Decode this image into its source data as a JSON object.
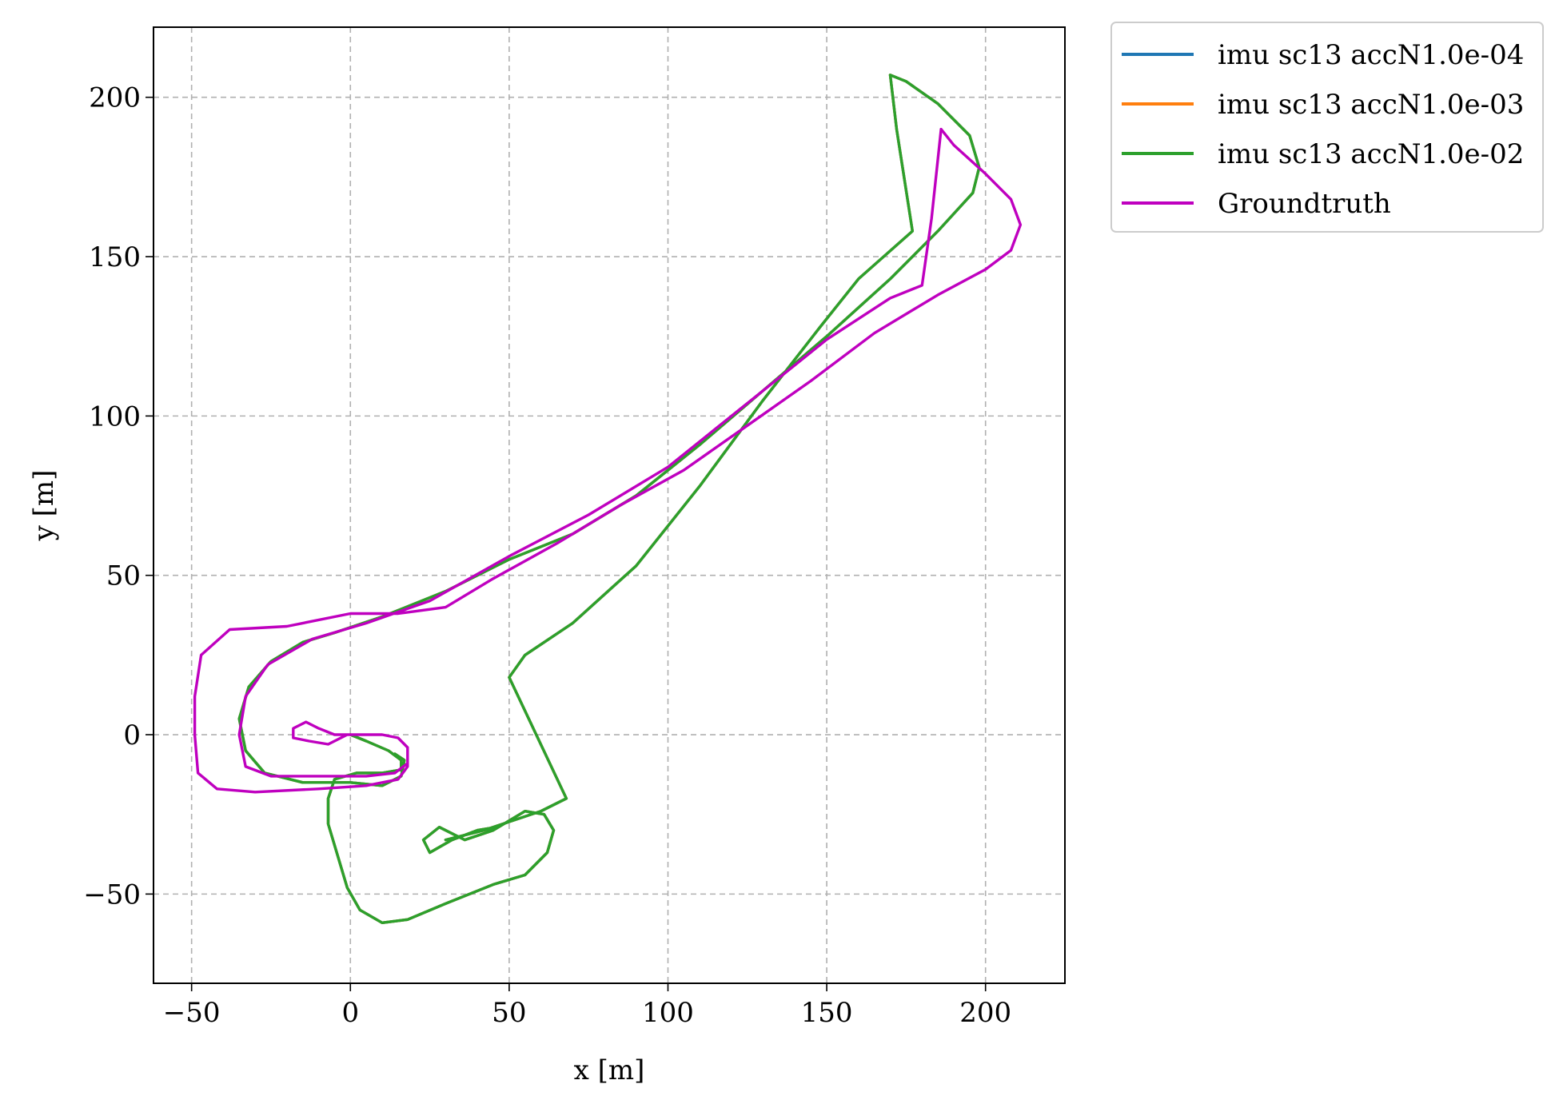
{
  "chart_data": {
    "type": "line",
    "title": "",
    "xlabel": "x [m]",
    "ylabel": "y [m]",
    "xlim": [
      -62,
      225
    ],
    "ylim": [
      -78,
      222
    ],
    "xticks": [
      -50,
      0,
      50,
      100,
      150,
      200
    ],
    "yticks": [
      -50,
      0,
      50,
      100,
      150,
      200
    ],
    "xtick_labels": [
      "−50",
      "0",
      "50",
      "100",
      "150",
      "200"
    ],
    "ytick_labels": [
      "−50",
      "0",
      "50",
      "100",
      "150",
      "200"
    ],
    "grid": true,
    "legend_position": "outside-top-right",
    "series": [
      {
        "name": "imu sc13 accN1.0e-04",
        "color": "#1f77b4",
        "points": [
          [
            0,
            0
          ],
          [
            5,
            -2
          ],
          [
            12,
            -5
          ],
          [
            16,
            -8
          ],
          [
            16,
            -11
          ],
          [
            10,
            -12
          ],
          [
            2,
            -12
          ],
          [
            -5,
            -14
          ],
          [
            -7,
            -20
          ],
          [
            -7,
            -28
          ],
          [
            -4,
            -38
          ],
          [
            -1,
            -48
          ],
          [
            3,
            -55
          ],
          [
            10,
            -59
          ],
          [
            18,
            -58
          ],
          [
            30,
            -53
          ],
          [
            45,
            -47
          ],
          [
            55,
            -44
          ],
          [
            62,
            -37
          ],
          [
            64,
            -30
          ],
          [
            61,
            -25
          ],
          [
            55,
            -24
          ],
          [
            45,
            -30
          ],
          [
            36,
            -33
          ],
          [
            28,
            -29
          ],
          [
            23,
            -33
          ],
          [
            25,
            -37
          ],
          [
            32,
            -33
          ],
          [
            40,
            -30
          ],
          [
            46,
            -29
          ],
          [
            30,
            -33
          ],
          [
            42,
            -30
          ],
          [
            60,
            -24
          ],
          [
            68,
            -20
          ],
          [
            50,
            18
          ],
          [
            55,
            25
          ],
          [
            70,
            35
          ],
          [
            90,
            53
          ],
          [
            110,
            78
          ],
          [
            130,
            105
          ],
          [
            148,
            128
          ],
          [
            160,
            143
          ],
          [
            177,
            158
          ],
          [
            172,
            190
          ],
          [
            170,
            207
          ],
          [
            175,
            205
          ],
          [
            185,
            198
          ],
          [
            195,
            188
          ],
          [
            198,
            178
          ],
          [
            196,
            170
          ],
          [
            185,
            158
          ],
          [
            170,
            143
          ],
          [
            150,
            125
          ],
          [
            130,
            108
          ],
          [
            110,
            91
          ],
          [
            90,
            75
          ],
          [
            70,
            63
          ],
          [
            50,
            55
          ],
          [
            30,
            45
          ],
          [
            10,
            37
          ],
          [
            -5,
            32
          ],
          [
            -15,
            29
          ],
          [
            -25,
            23
          ],
          [
            -32,
            15
          ],
          [
            -35,
            5
          ],
          [
            -33,
            -5
          ],
          [
            -27,
            -12
          ],
          [
            -15,
            -15
          ],
          [
            0,
            -15
          ],
          [
            10,
            -16
          ],
          [
            16,
            -13
          ],
          [
            17,
            -8
          ],
          [
            14,
            -6
          ]
        ]
      },
      {
        "name": "imu sc13 accN1.0e-03",
        "color": "#ff7f0e",
        "points": [
          [
            0,
            0
          ],
          [
            5,
            -2
          ],
          [
            12,
            -5
          ],
          [
            16,
            -8
          ],
          [
            16,
            -11
          ],
          [
            10,
            -12
          ],
          [
            2,
            -12
          ],
          [
            -5,
            -14
          ],
          [
            -7,
            -20
          ],
          [
            -7,
            -28
          ],
          [
            -4,
            -38
          ],
          [
            -1,
            -48
          ],
          [
            3,
            -55
          ],
          [
            10,
            -59
          ],
          [
            18,
            -58
          ],
          [
            30,
            -53
          ],
          [
            45,
            -47
          ],
          [
            55,
            -44
          ],
          [
            62,
            -37
          ],
          [
            64,
            -30
          ],
          [
            61,
            -25
          ],
          [
            55,
            -24
          ],
          [
            45,
            -30
          ],
          [
            36,
            -33
          ],
          [
            28,
            -29
          ],
          [
            23,
            -33
          ],
          [
            25,
            -37
          ],
          [
            32,
            -33
          ],
          [
            40,
            -30
          ],
          [
            46,
            -29
          ],
          [
            30,
            -33
          ],
          [
            42,
            -30
          ],
          [
            60,
            -24
          ],
          [
            68,
            -20
          ],
          [
            50,
            18
          ],
          [
            55,
            25
          ],
          [
            70,
            35
          ],
          [
            90,
            53
          ],
          [
            110,
            78
          ],
          [
            130,
            105
          ],
          [
            148,
            128
          ],
          [
            160,
            143
          ],
          [
            177,
            158
          ],
          [
            172,
            190
          ],
          [
            170,
            207
          ],
          [
            175,
            205
          ],
          [
            185,
            198
          ],
          [
            195,
            188
          ],
          [
            198,
            178
          ],
          [
            196,
            170
          ],
          [
            185,
            158
          ],
          [
            170,
            143
          ],
          [
            150,
            125
          ],
          [
            130,
            108
          ],
          [
            110,
            91
          ],
          [
            90,
            75
          ],
          [
            70,
            63
          ],
          [
            50,
            55
          ],
          [
            30,
            45
          ],
          [
            10,
            37
          ],
          [
            -5,
            32
          ],
          [
            -15,
            29
          ],
          [
            -25,
            23
          ],
          [
            -32,
            15
          ],
          [
            -35,
            5
          ],
          [
            -33,
            -5
          ],
          [
            -27,
            -12
          ],
          [
            -15,
            -15
          ],
          [
            0,
            -15
          ],
          [
            10,
            -16
          ],
          [
            16,
            -13
          ],
          [
            17,
            -8
          ],
          [
            14,
            -6
          ]
        ]
      },
      {
        "name": "imu sc13 accN1.0e-02",
        "color": "#2ca02c",
        "points": [
          [
            0,
            0
          ],
          [
            5,
            -2
          ],
          [
            12,
            -5
          ],
          [
            16,
            -8
          ],
          [
            16,
            -11
          ],
          [
            10,
            -12
          ],
          [
            2,
            -12
          ],
          [
            -5,
            -14
          ],
          [
            -7,
            -20
          ],
          [
            -7,
            -28
          ],
          [
            -4,
            -38
          ],
          [
            -1,
            -48
          ],
          [
            3,
            -55
          ],
          [
            10,
            -59
          ],
          [
            18,
            -58
          ],
          [
            30,
            -53
          ],
          [
            45,
            -47
          ],
          [
            55,
            -44
          ],
          [
            62,
            -37
          ],
          [
            64,
            -30
          ],
          [
            61,
            -25
          ],
          [
            55,
            -24
          ],
          [
            45,
            -30
          ],
          [
            36,
            -33
          ],
          [
            28,
            -29
          ],
          [
            23,
            -33
          ],
          [
            25,
            -37
          ],
          [
            32,
            -33
          ],
          [
            40,
            -30
          ],
          [
            46,
            -29
          ],
          [
            30,
            -33
          ],
          [
            42,
            -30
          ],
          [
            60,
            -24
          ],
          [
            68,
            -20
          ],
          [
            50,
            18
          ],
          [
            55,
            25
          ],
          [
            70,
            35
          ],
          [
            90,
            53
          ],
          [
            110,
            78
          ],
          [
            130,
            105
          ],
          [
            148,
            128
          ],
          [
            160,
            143
          ],
          [
            177,
            158
          ],
          [
            172,
            190
          ],
          [
            170,
            207
          ],
          [
            175,
            205
          ],
          [
            185,
            198
          ],
          [
            195,
            188
          ],
          [
            198,
            178
          ],
          [
            196,
            170
          ],
          [
            185,
            158
          ],
          [
            170,
            143
          ],
          [
            150,
            125
          ],
          [
            130,
            108
          ],
          [
            110,
            91
          ],
          [
            90,
            75
          ],
          [
            70,
            63
          ],
          [
            50,
            55
          ],
          [
            30,
            45
          ],
          [
            10,
            37
          ],
          [
            -5,
            32
          ],
          [
            -15,
            29
          ],
          [
            -25,
            23
          ],
          [
            -32,
            15
          ],
          [
            -35,
            5
          ],
          [
            -33,
            -5
          ],
          [
            -27,
            -12
          ],
          [
            -15,
            -15
          ],
          [
            0,
            -15
          ],
          [
            10,
            -16
          ],
          [
            16,
            -13
          ],
          [
            17,
            -8
          ],
          [
            14,
            -6
          ]
        ]
      },
      {
        "name": "Groundtruth",
        "color": "#bf00bf",
        "points": [
          [
            0,
            0
          ],
          [
            -5,
            0
          ],
          [
            -10,
            2
          ],
          [
            -14,
            4
          ],
          [
            -18,
            2
          ],
          [
            -18,
            -1
          ],
          [
            -13,
            -2
          ],
          [
            -7,
            -3
          ],
          [
            -1,
            0
          ],
          [
            5,
            0
          ],
          [
            10,
            0
          ],
          [
            15,
            -1
          ],
          [
            18,
            -4
          ],
          [
            18,
            -9
          ],
          [
            14,
            -12
          ],
          [
            5,
            -13
          ],
          [
            -10,
            -13
          ],
          [
            -25,
            -13
          ],
          [
            -33,
            -10
          ],
          [
            -35,
            0
          ],
          [
            -33,
            12
          ],
          [
            -26,
            22
          ],
          [
            -12,
            30
          ],
          [
            5,
            35
          ],
          [
            25,
            42
          ],
          [
            50,
            56
          ],
          [
            75,
            69
          ],
          [
            100,
            84
          ],
          [
            125,
            104
          ],
          [
            150,
            124
          ],
          [
            170,
            137
          ],
          [
            180,
            141
          ],
          [
            183,
            162
          ],
          [
            186,
            190
          ],
          [
            190,
            185
          ],
          [
            200,
            176
          ],
          [
            208,
            168
          ],
          [
            211,
            160
          ],
          [
            208,
            152
          ],
          [
            200,
            146
          ],
          [
            185,
            138
          ],
          [
            165,
            126
          ],
          [
            145,
            111
          ],
          [
            125,
            97
          ],
          [
            105,
            83
          ],
          [
            85,
            72
          ],
          [
            65,
            60
          ],
          [
            45,
            49
          ],
          [
            30,
            40
          ],
          [
            15,
            38
          ],
          [
            0,
            38
          ],
          [
            -20,
            34
          ],
          [
            -38,
            33
          ],
          [
            -47,
            25
          ],
          [
            -49,
            12
          ],
          [
            -49,
            0
          ],
          [
            -48,
            -12
          ],
          [
            -42,
            -17
          ],
          [
            -30,
            -18
          ],
          [
            -10,
            -17
          ],
          [
            5,
            -16
          ],
          [
            15,
            -14
          ],
          [
            18,
            -10
          ],
          [
            18,
            -6
          ]
        ]
      }
    ]
  }
}
